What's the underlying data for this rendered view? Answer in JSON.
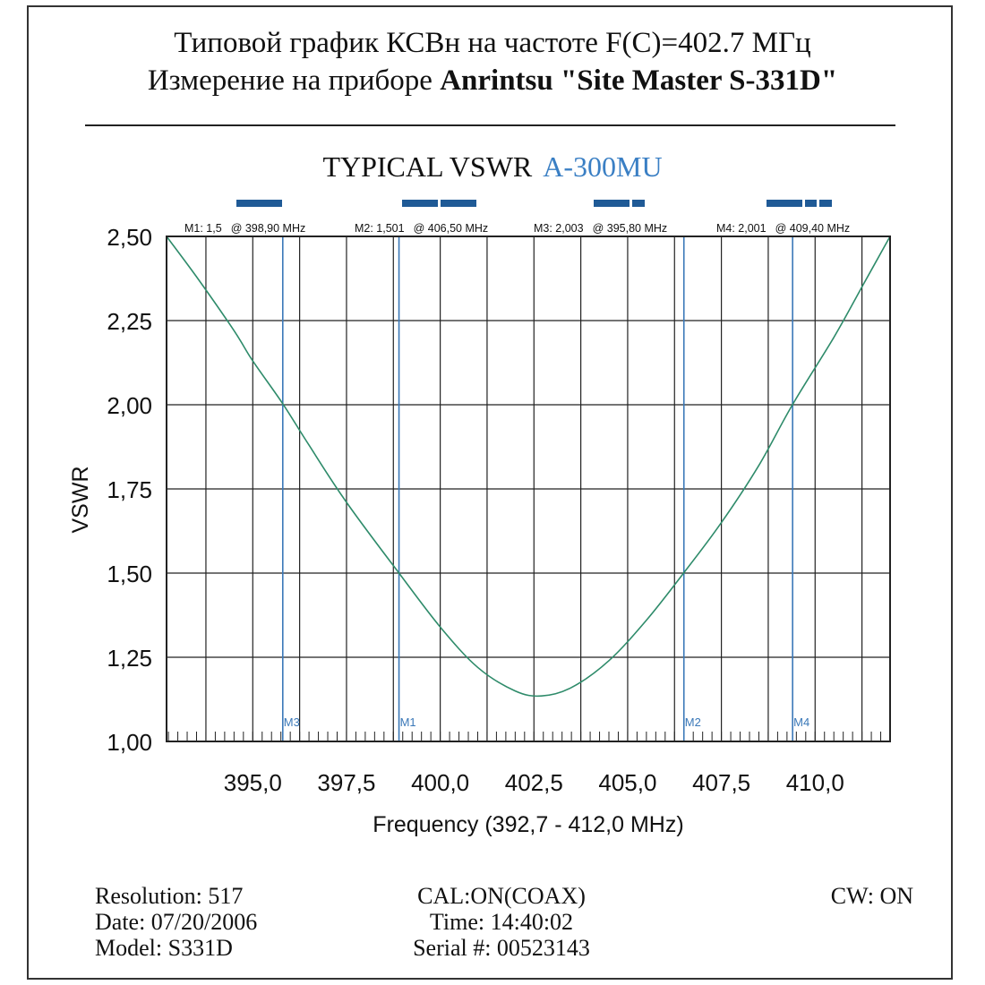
{
  "header": {
    "line1": "Типовой график КСВн на частоте F(C)=402.7 МГц",
    "line2_prefix": "Измерение на приборе ",
    "line2_bold": "Anrintsu \"Site Master S-331D\""
  },
  "footer": {
    "resolution": "Resolution:  517",
    "date": "Date: 07/20/2006",
    "model": "Model: S331D",
    "cal": "CAL:ON(COAX)",
    "time": "Time: 14:40:02",
    "serial": "Serial #: 00523143",
    "cw": "CW: ON"
  },
  "colors": {
    "trace": "#2e8b6a",
    "marker": "#3a78b8",
    "bar": "#1f5a96",
    "grid": "#222222",
    "title_accent": "#3a7fc4"
  },
  "chart_data": {
    "type": "line",
    "title": "TYPICAL VSWR",
    "title_accent": "A-300MU",
    "xlabel": "Frequency (392,7 - 412,0 MHz)",
    "ylabel": "VSWR",
    "xlim": [
      392.7,
      412.0
    ],
    "ylim": [
      1.0,
      2.5
    ],
    "xticks": [
      395.0,
      397.5,
      400.0,
      402.5,
      405.0,
      407.5,
      410.0
    ],
    "xtick_labels": [
      "395,0",
      "397,5",
      "400,0",
      "402,5",
      "405,0",
      "407,5",
      "410,0"
    ],
    "yticks": [
      1.0,
      1.25,
      1.5,
      1.75,
      2.0,
      2.25,
      2.5
    ],
    "ytick_labels": [
      "1,00",
      "1,25",
      "1,50",
      "1,75",
      "2,00",
      "2,25",
      "2,50"
    ],
    "grid": true,
    "series": [
      {
        "x": [
          392.7,
          393.5,
          394.5,
          395.0,
          395.8,
          396.5,
          397.5,
          398.9,
          400.0,
          401.0,
          402.0,
          402.7,
          403.5,
          404.5,
          405.5,
          406.5,
          407.5,
          408.5,
          409.4,
          410.5,
          411.3,
          412.0
        ],
        "y": [
          2.5,
          2.38,
          2.22,
          2.13,
          2.003,
          1.88,
          1.71,
          1.5,
          1.34,
          1.22,
          1.15,
          1.135,
          1.16,
          1.24,
          1.36,
          1.501,
          1.65,
          1.82,
          2.001,
          2.2,
          2.36,
          2.5
        ]
      }
    ],
    "markers": [
      {
        "id": "M1",
        "x": 398.9,
        "readout": "M1: 1,5",
        "freq": "@ 398,90 MHz"
      },
      {
        "id": "M2",
        "x": 406.5,
        "readout": "M2: 1,501",
        "freq": "@ 406,50 MHz"
      },
      {
        "id": "M3",
        "x": 395.8,
        "readout": "M3: 2,003",
        "freq": "@ 395,80 MHz"
      },
      {
        "id": "M4",
        "x": 409.4,
        "readout": "M4: 2,001",
        "freq": "@ 409,40 MHz"
      }
    ]
  }
}
